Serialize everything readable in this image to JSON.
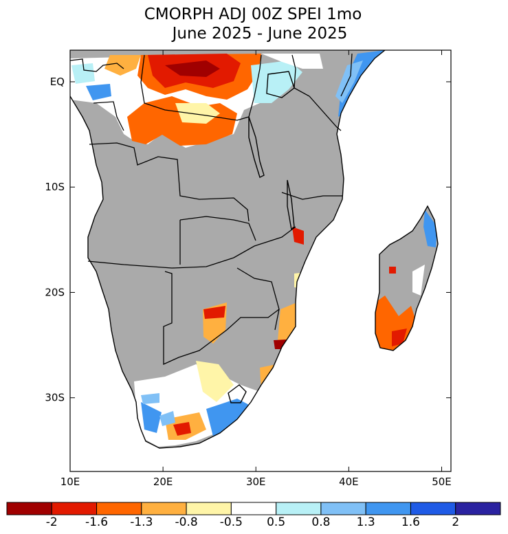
{
  "title": {
    "line1": "CMORPH ADJ 00Z SPEI 1mo",
    "line2": "June 2025 - June 2025"
  },
  "map": {
    "lon_range": [
      10,
      51
    ],
    "lat_range": [
      -37,
      3
    ],
    "lon_ticks": [
      {
        "value": 10,
        "label": "10E"
      },
      {
        "value": 20,
        "label": "20E"
      },
      {
        "value": 30,
        "label": "30E"
      },
      {
        "value": 40,
        "label": "40E"
      },
      {
        "value": 50,
        "label": "50E"
      }
    ],
    "lat_ticks": [
      {
        "value": 0,
        "label": "EQ"
      },
      {
        "value": -10,
        "label": "10S"
      },
      {
        "value": -20,
        "label": "20S"
      },
      {
        "value": -30,
        "label": "30S"
      }
    ]
  },
  "colorbar": {
    "colors": [
      "#a00000",
      "#e21a00",
      "#ff6600",
      "#ffb040",
      "#fff5a8",
      "#ffffff",
      "#b8f0f6",
      "#80c0f6",
      "#4096f0",
      "#1f5be6",
      "#2a22a0"
    ],
    "labels": [
      "-2",
      "-1.6",
      "-1.3",
      "-0.8",
      "-0.5",
      "0.5",
      "0.8",
      "1.3",
      "1.6",
      "2"
    ]
  },
  "colors": {
    "no_data": "#aaaaaa",
    "dry_strong": "#e21a00",
    "dry": "#ff6600",
    "wet": "#4096f0"
  }
}
